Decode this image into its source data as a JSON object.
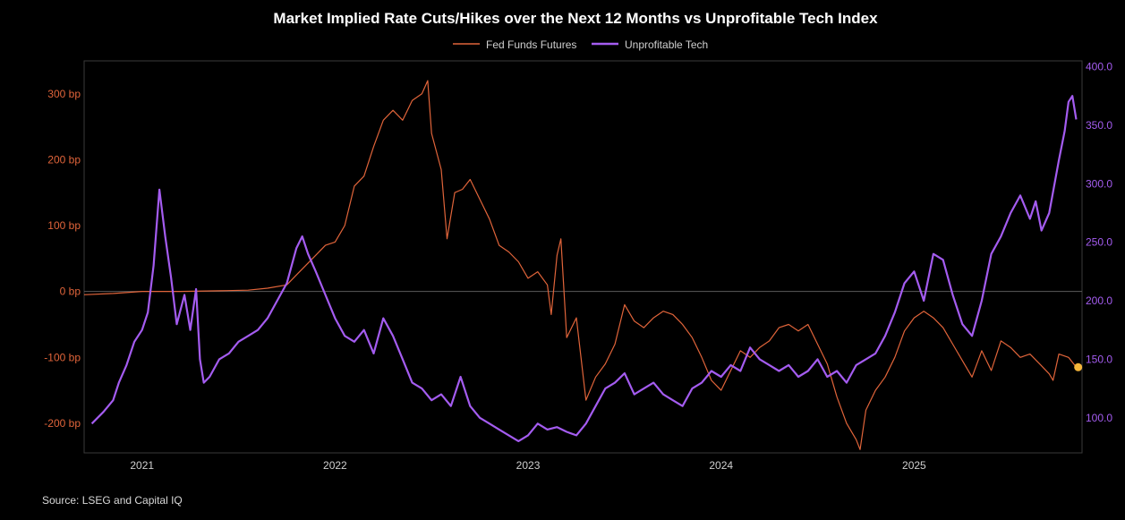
{
  "chart_data": {
    "type": "line",
    "title": "Market Implied Rate Cuts/Hikes over the Next 12 Months vs Unprofitable Tech Index",
    "legend_position": "top-center",
    "grid": false,
    "x_range": [
      2020.7,
      2025.87
    ],
    "x_ticks": [
      {
        "value": 2021,
        "label": "2021"
      },
      {
        "value": 2022,
        "label": "2022"
      },
      {
        "value": 2023,
        "label": "2023"
      },
      {
        "value": 2024,
        "label": "2024"
      },
      {
        "value": 2025,
        "label": "2025"
      }
    ],
    "y_left": {
      "range": [
        -245,
        350
      ],
      "ticks": [
        {
          "value": 300,
          "label": "300 bp"
        },
        {
          "value": 200,
          "label": "200 bp"
        },
        {
          "value": 100,
          "label": "100 bp"
        },
        {
          "value": 0,
          "label": "0 bp"
        },
        {
          "value": -100,
          "label": "-100 bp"
        },
        {
          "value": -200,
          "label": "-200 bp"
        }
      ],
      "zero_line": 0
    },
    "y_right": {
      "range": [
        70,
        405
      ],
      "ticks": [
        {
          "value": 400,
          "label": "400.0"
        },
        {
          "value": 350,
          "label": "350.0"
        },
        {
          "value": 300,
          "label": "300.0"
        },
        {
          "value": 250,
          "label": "250.0"
        },
        {
          "value": 200,
          "label": "200.0"
        },
        {
          "value": 150,
          "label": "150.0"
        },
        {
          "value": 100,
          "label": "100.0"
        }
      ]
    },
    "series": [
      {
        "name": "Fed Funds Futures",
        "axis": "left",
        "color": "#e0643a",
        "points": [
          [
            2020.7,
            -5
          ],
          [
            2020.85,
            -3
          ],
          [
            2021.0,
            0
          ],
          [
            2021.2,
            0
          ],
          [
            2021.4,
            1
          ],
          [
            2021.55,
            2
          ],
          [
            2021.65,
            5
          ],
          [
            2021.75,
            10
          ],
          [
            2021.8,
            25
          ],
          [
            2021.85,
            40
          ],
          [
            2021.9,
            55
          ],
          [
            2021.95,
            70
          ],
          [
            2022.0,
            75
          ],
          [
            2022.05,
            100
          ],
          [
            2022.1,
            160
          ],
          [
            2022.15,
            175
          ],
          [
            2022.2,
            220
          ],
          [
            2022.25,
            260
          ],
          [
            2022.3,
            275
          ],
          [
            2022.35,
            260
          ],
          [
            2022.4,
            290
          ],
          [
            2022.45,
            300
          ],
          [
            2022.48,
            320
          ],
          [
            2022.5,
            240
          ],
          [
            2022.55,
            185
          ],
          [
            2022.58,
            80
          ],
          [
            2022.62,
            150
          ],
          [
            2022.66,
            155
          ],
          [
            2022.7,
            170
          ],
          [
            2022.75,
            140
          ],
          [
            2022.8,
            110
          ],
          [
            2022.85,
            70
          ],
          [
            2022.9,
            60
          ],
          [
            2022.95,
            45
          ],
          [
            2023.0,
            20
          ],
          [
            2023.05,
            30
          ],
          [
            2023.1,
            10
          ],
          [
            2023.12,
            -35
          ],
          [
            2023.15,
            55
          ],
          [
            2023.17,
            80
          ],
          [
            2023.2,
            -70
          ],
          [
            2023.25,
            -40
          ],
          [
            2023.3,
            -165
          ],
          [
            2023.35,
            -130
          ],
          [
            2023.4,
            -110
          ],
          [
            2023.45,
            -80
          ],
          [
            2023.5,
            -20
          ],
          [
            2023.55,
            -45
          ],
          [
            2023.6,
            -55
          ],
          [
            2023.65,
            -40
          ],
          [
            2023.7,
            -30
          ],
          [
            2023.75,
            -35
          ],
          [
            2023.8,
            -50
          ],
          [
            2023.85,
            -70
          ],
          [
            2023.9,
            -100
          ],
          [
            2023.95,
            -135
          ],
          [
            2024.0,
            -150
          ],
          [
            2024.05,
            -120
          ],
          [
            2024.1,
            -90
          ],
          [
            2024.15,
            -100
          ],
          [
            2024.2,
            -85
          ],
          [
            2024.25,
            -75
          ],
          [
            2024.3,
            -55
          ],
          [
            2024.35,
            -50
          ],
          [
            2024.4,
            -60
          ],
          [
            2024.45,
            -50
          ],
          [
            2024.5,
            -80
          ],
          [
            2024.55,
            -110
          ],
          [
            2024.6,
            -160
          ],
          [
            2024.65,
            -200
          ],
          [
            2024.7,
            -225
          ],
          [
            2024.72,
            -240
          ],
          [
            2024.75,
            -180
          ],
          [
            2024.8,
            -150
          ],
          [
            2024.85,
            -130
          ],
          [
            2024.9,
            -100
          ],
          [
            2024.95,
            -60
          ],
          [
            2025.0,
            -40
          ],
          [
            2025.05,
            -30
          ],
          [
            2025.1,
            -40
          ],
          [
            2025.15,
            -55
          ],
          [
            2025.2,
            -80
          ],
          [
            2025.25,
            -105
          ],
          [
            2025.3,
            -130
          ],
          [
            2025.35,
            -90
          ],
          [
            2025.4,
            -120
          ],
          [
            2025.45,
            -75
          ],
          [
            2025.5,
            -85
          ],
          [
            2025.55,
            -100
          ],
          [
            2025.6,
            -95
          ],
          [
            2025.65,
            -110
          ],
          [
            2025.7,
            -125
          ],
          [
            2025.72,
            -135
          ],
          [
            2025.75,
            -95
          ],
          [
            2025.8,
            -100
          ],
          [
            2025.84,
            -115
          ]
        ]
      },
      {
        "name": "Unprofitable Tech",
        "axis": "right",
        "color": "#a45cf0",
        "points": [
          [
            2020.74,
            95
          ],
          [
            2020.8,
            105
          ],
          [
            2020.85,
            115
          ],
          [
            2020.88,
            130
          ],
          [
            2020.92,
            145
          ],
          [
            2020.96,
            165
          ],
          [
            2021.0,
            175
          ],
          [
            2021.03,
            190
          ],
          [
            2021.06,
            230
          ],
          [
            2021.09,
            295
          ],
          [
            2021.12,
            255
          ],
          [
            2021.15,
            220
          ],
          [
            2021.18,
            180
          ],
          [
            2021.22,
            205
          ],
          [
            2021.25,
            175
          ],
          [
            2021.28,
            210
          ],
          [
            2021.3,
            150
          ],
          [
            2021.32,
            130
          ],
          [
            2021.35,
            135
          ],
          [
            2021.4,
            150
          ],
          [
            2021.45,
            155
          ],
          [
            2021.5,
            165
          ],
          [
            2021.55,
            170
          ],
          [
            2021.6,
            175
          ],
          [
            2021.65,
            185
          ],
          [
            2021.7,
            200
          ],
          [
            2021.75,
            215
          ],
          [
            2021.8,
            245
          ],
          [
            2021.83,
            255
          ],
          [
            2021.86,
            240
          ],
          [
            2021.9,
            225
          ],
          [
            2021.95,
            205
          ],
          [
            2022.0,
            185
          ],
          [
            2022.05,
            170
          ],
          [
            2022.1,
            165
          ],
          [
            2022.15,
            175
          ],
          [
            2022.2,
            155
          ],
          [
            2022.25,
            185
          ],
          [
            2022.3,
            170
          ],
          [
            2022.35,
            150
          ],
          [
            2022.4,
            130
          ],
          [
            2022.45,
            125
          ],
          [
            2022.5,
            115
          ],
          [
            2022.55,
            120
          ],
          [
            2022.6,
            110
          ],
          [
            2022.65,
            135
          ],
          [
            2022.7,
            110
          ],
          [
            2022.75,
            100
          ],
          [
            2022.8,
            95
          ],
          [
            2022.85,
            90
          ],
          [
            2022.9,
            85
          ],
          [
            2022.95,
            80
          ],
          [
            2023.0,
            85
          ],
          [
            2023.05,
            95
          ],
          [
            2023.1,
            90
          ],
          [
            2023.15,
            92
          ],
          [
            2023.2,
            88
          ],
          [
            2023.25,
            85
          ],
          [
            2023.3,
            95
          ],
          [
            2023.35,
            110
          ],
          [
            2023.4,
            125
          ],
          [
            2023.45,
            130
          ],
          [
            2023.5,
            138
          ],
          [
            2023.55,
            120
          ],
          [
            2023.6,
            125
          ],
          [
            2023.65,
            130
          ],
          [
            2023.7,
            120
          ],
          [
            2023.75,
            115
          ],
          [
            2023.8,
            110
          ],
          [
            2023.85,
            125
          ],
          [
            2023.9,
            130
          ],
          [
            2023.95,
            140
          ],
          [
            2024.0,
            135
          ],
          [
            2024.05,
            145
          ],
          [
            2024.1,
            140
          ],
          [
            2024.15,
            160
          ],
          [
            2024.2,
            150
          ],
          [
            2024.25,
            145
          ],
          [
            2024.3,
            140
          ],
          [
            2024.35,
            145
          ],
          [
            2024.4,
            135
          ],
          [
            2024.45,
            140
          ],
          [
            2024.5,
            150
          ],
          [
            2024.55,
            135
          ],
          [
            2024.6,
            140
          ],
          [
            2024.65,
            130
          ],
          [
            2024.7,
            145
          ],
          [
            2024.75,
            150
          ],
          [
            2024.8,
            155
          ],
          [
            2024.85,
            170
          ],
          [
            2024.9,
            190
          ],
          [
            2024.95,
            215
          ],
          [
            2025.0,
            225
          ],
          [
            2025.05,
            200
          ],
          [
            2025.1,
            240
          ],
          [
            2025.15,
            235
          ],
          [
            2025.2,
            205
          ],
          [
            2025.25,
            180
          ],
          [
            2025.3,
            170
          ],
          [
            2025.35,
            200
          ],
          [
            2025.4,
            240
          ],
          [
            2025.45,
            255
          ],
          [
            2025.5,
            275
          ],
          [
            2025.55,
            290
          ],
          [
            2025.6,
            270
          ],
          [
            2025.63,
            285
          ],
          [
            2025.66,
            260
          ],
          [
            2025.7,
            275
          ],
          [
            2025.75,
            320
          ],
          [
            2025.78,
            345
          ],
          [
            2025.8,
            370
          ],
          [
            2025.82,
            375
          ],
          [
            2025.84,
            355
          ]
        ]
      }
    ],
    "end_marker": {
      "series": "Fed Funds Futures",
      "x": 2025.85,
      "y": -115,
      "color": "#f5b63a"
    }
  },
  "source": "Source: LSEG and Capital IQ"
}
